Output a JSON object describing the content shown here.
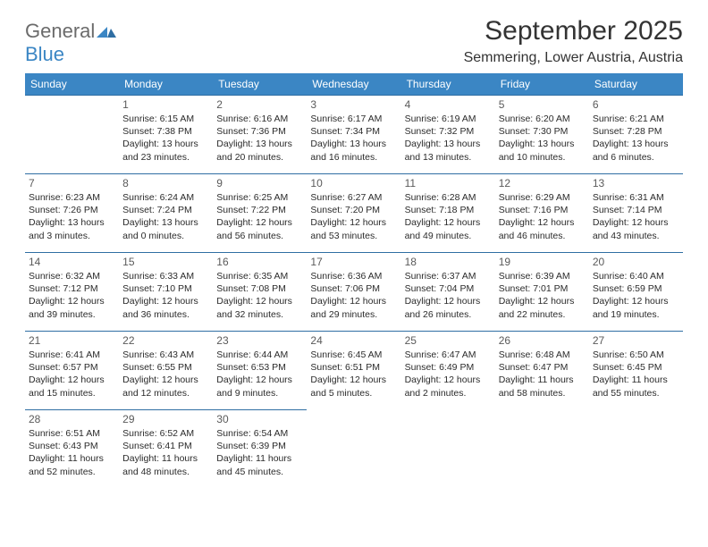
{
  "brand": {
    "part1": "General",
    "part2": "Blue"
  },
  "title": "September 2025",
  "location": "Semmering, Lower Austria, Austria",
  "header_bg": "#3b86c4",
  "header_text_color": "#ffffff",
  "row_border_color": "#2f6ea3",
  "text_color": "#2b2b2b",
  "daynum_color": "#5a5a5a",
  "day_labels": [
    "Sunday",
    "Monday",
    "Tuesday",
    "Wednesday",
    "Thursday",
    "Friday",
    "Saturday"
  ],
  "weeks": [
    [
      null,
      {
        "n": "1",
        "sunrise": "6:15 AM",
        "sunset": "7:38 PM",
        "daylight": "13 hours and 23 minutes."
      },
      {
        "n": "2",
        "sunrise": "6:16 AM",
        "sunset": "7:36 PM",
        "daylight": "13 hours and 20 minutes."
      },
      {
        "n": "3",
        "sunrise": "6:17 AM",
        "sunset": "7:34 PM",
        "daylight": "13 hours and 16 minutes."
      },
      {
        "n": "4",
        "sunrise": "6:19 AM",
        "sunset": "7:32 PM",
        "daylight": "13 hours and 13 minutes."
      },
      {
        "n": "5",
        "sunrise": "6:20 AM",
        "sunset": "7:30 PM",
        "daylight": "13 hours and 10 minutes."
      },
      {
        "n": "6",
        "sunrise": "6:21 AM",
        "sunset": "7:28 PM",
        "daylight": "13 hours and 6 minutes."
      }
    ],
    [
      {
        "n": "7",
        "sunrise": "6:23 AM",
        "sunset": "7:26 PM",
        "daylight": "13 hours and 3 minutes."
      },
      {
        "n": "8",
        "sunrise": "6:24 AM",
        "sunset": "7:24 PM",
        "daylight": "13 hours and 0 minutes."
      },
      {
        "n": "9",
        "sunrise": "6:25 AM",
        "sunset": "7:22 PM",
        "daylight": "12 hours and 56 minutes."
      },
      {
        "n": "10",
        "sunrise": "6:27 AM",
        "sunset": "7:20 PM",
        "daylight": "12 hours and 53 minutes."
      },
      {
        "n": "11",
        "sunrise": "6:28 AM",
        "sunset": "7:18 PM",
        "daylight": "12 hours and 49 minutes."
      },
      {
        "n": "12",
        "sunrise": "6:29 AM",
        "sunset": "7:16 PM",
        "daylight": "12 hours and 46 minutes."
      },
      {
        "n": "13",
        "sunrise": "6:31 AM",
        "sunset": "7:14 PM",
        "daylight": "12 hours and 43 minutes."
      }
    ],
    [
      {
        "n": "14",
        "sunrise": "6:32 AM",
        "sunset": "7:12 PM",
        "daylight": "12 hours and 39 minutes."
      },
      {
        "n": "15",
        "sunrise": "6:33 AM",
        "sunset": "7:10 PM",
        "daylight": "12 hours and 36 minutes."
      },
      {
        "n": "16",
        "sunrise": "6:35 AM",
        "sunset": "7:08 PM",
        "daylight": "12 hours and 32 minutes."
      },
      {
        "n": "17",
        "sunrise": "6:36 AM",
        "sunset": "7:06 PM",
        "daylight": "12 hours and 29 minutes."
      },
      {
        "n": "18",
        "sunrise": "6:37 AM",
        "sunset": "7:04 PM",
        "daylight": "12 hours and 26 minutes."
      },
      {
        "n": "19",
        "sunrise": "6:39 AM",
        "sunset": "7:01 PM",
        "daylight": "12 hours and 22 minutes."
      },
      {
        "n": "20",
        "sunrise": "6:40 AM",
        "sunset": "6:59 PM",
        "daylight": "12 hours and 19 minutes."
      }
    ],
    [
      {
        "n": "21",
        "sunrise": "6:41 AM",
        "sunset": "6:57 PM",
        "daylight": "12 hours and 15 minutes."
      },
      {
        "n": "22",
        "sunrise": "6:43 AM",
        "sunset": "6:55 PM",
        "daylight": "12 hours and 12 minutes."
      },
      {
        "n": "23",
        "sunrise": "6:44 AM",
        "sunset": "6:53 PM",
        "daylight": "12 hours and 9 minutes."
      },
      {
        "n": "24",
        "sunrise": "6:45 AM",
        "sunset": "6:51 PM",
        "daylight": "12 hours and 5 minutes."
      },
      {
        "n": "25",
        "sunrise": "6:47 AM",
        "sunset": "6:49 PM",
        "daylight": "12 hours and 2 minutes."
      },
      {
        "n": "26",
        "sunrise": "6:48 AM",
        "sunset": "6:47 PM",
        "daylight": "11 hours and 58 minutes."
      },
      {
        "n": "27",
        "sunrise": "6:50 AM",
        "sunset": "6:45 PM",
        "daylight": "11 hours and 55 minutes."
      }
    ],
    [
      {
        "n": "28",
        "sunrise": "6:51 AM",
        "sunset": "6:43 PM",
        "daylight": "11 hours and 52 minutes."
      },
      {
        "n": "29",
        "sunrise": "6:52 AM",
        "sunset": "6:41 PM",
        "daylight": "11 hours and 48 minutes."
      },
      {
        "n": "30",
        "sunrise": "6:54 AM",
        "sunset": "6:39 PM",
        "daylight": "11 hours and 45 minutes."
      },
      null,
      null,
      null,
      null
    ]
  ],
  "labels": {
    "sunrise": "Sunrise:",
    "sunset": "Sunset:",
    "daylight": "Daylight:"
  }
}
